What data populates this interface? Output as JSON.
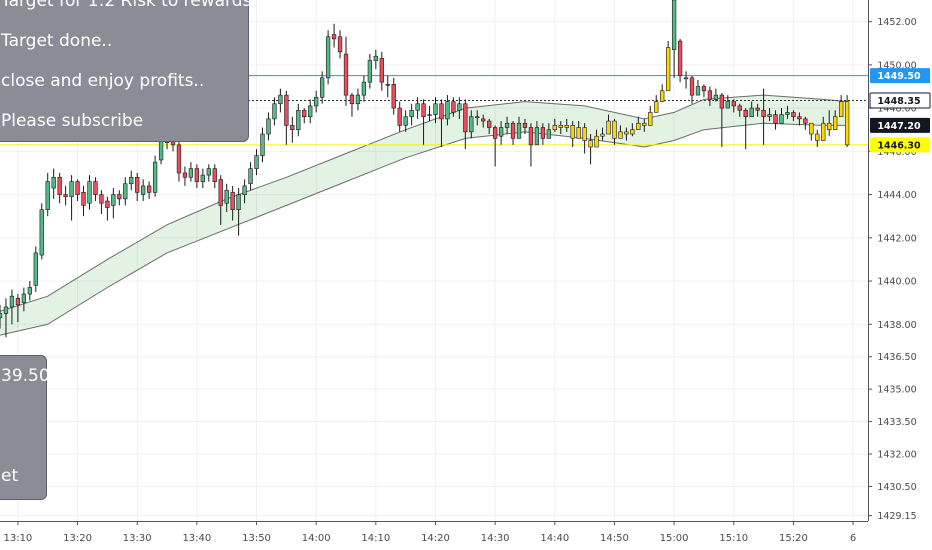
{
  "annotations": {
    "top_note": [
      "Target for 1:2 Risk to rewards",
      "Target done..",
      "close and enjoy profits..",
      "Please subscribe"
    ],
    "left_note": [
      "39.50",
      "et"
    ]
  },
  "chart_data": {
    "type": "candlestick",
    "title": "",
    "xlabel": "",
    "ylabel": "",
    "ylim": [
      1428.9,
      1453.0
    ],
    "y_ticks": [
      "1452.00",
      "1450.00",
      "1448.00",
      "1446.00",
      "1444.00",
      "1442.00",
      "1440.00",
      "1438.00",
      "1436.50",
      "1435.00",
      "1433.50",
      "1432.00",
      "1430.50",
      "1429.15"
    ],
    "y_tick_values": [
      1452.0,
      1450.0,
      1448.0,
      1446.0,
      1444.0,
      1442.0,
      1440.0,
      1438.0,
      1436.5,
      1435.0,
      1433.5,
      1432.0,
      1430.5,
      1429.15
    ],
    "x_ticks": [
      "13:10",
      "13:20",
      "13:30",
      "13:40",
      "13:50",
      "14:00",
      "14:10",
      "14:20",
      "14:30",
      "14:40",
      "14:50",
      "15:00",
      "15:10",
      "15:20",
      "6"
    ],
    "x_tick_minutes": [
      10,
      20,
      30,
      40,
      50,
      60,
      70,
      80,
      90,
      100,
      110,
      120,
      130,
      140,
      150
    ],
    "x_range_minutes": [
      7,
      152.5
    ],
    "price_lines": [
      {
        "label": "1449.50",
        "value": 1449.5,
        "color": "#2196f3",
        "style": "solid"
      },
      {
        "label": "1448.35",
        "value": 1448.35,
        "color": "#333333",
        "style": "dotted"
      },
      {
        "label": "1447.20",
        "value": 1447.2,
        "color": "#222222",
        "style": "none"
      },
      {
        "label": "1446.30",
        "value": 1446.3,
        "color": "#f5f500",
        "style": "solid"
      }
    ],
    "band": {
      "minutes": [
        7,
        15,
        25,
        35,
        45,
        55,
        65,
        75,
        85,
        95,
        105,
        115,
        120,
        125,
        135,
        145,
        149
      ],
      "upper": [
        1438.6,
        1439.3,
        1441.0,
        1442.6,
        1443.8,
        1444.8,
        1445.9,
        1447.0,
        1448.0,
        1448.3,
        1448.1,
        1447.5,
        1447.8,
        1448.4,
        1448.6,
        1448.4,
        1448.3
      ],
      "lower": [
        1437.5,
        1438.0,
        1439.7,
        1441.3,
        1442.4,
        1443.5,
        1444.6,
        1445.7,
        1446.6,
        1446.9,
        1446.6,
        1446.2,
        1446.5,
        1447.0,
        1447.3,
        1447.2,
        1447.2
      ]
    },
    "candles": {
      "colors": {
        "up": "#53b987",
        "down": "#eb4d5c",
        "wick": "#1a1a1a",
        "highlight": "#ffd600"
      },
      "minute": [
        7,
        8,
        9,
        10,
        11,
        12,
        13,
        14,
        15,
        16,
        17,
        18,
        19,
        20,
        21,
        22,
        23,
        24,
        25,
        26,
        27,
        28,
        29,
        30,
        31,
        32,
        33,
        34,
        35,
        36,
        37,
        38,
        39,
        40,
        41,
        42,
        43,
        44,
        45,
        46,
        47,
        48,
        49,
        50,
        51,
        52,
        53,
        54,
        55,
        56,
        57,
        58,
        59,
        60,
        61,
        62,
        63,
        64,
        65,
        66,
        67,
        68,
        69,
        70,
        71,
        72,
        73,
        74,
        75,
        76,
        77,
        78,
        79,
        80,
        81,
        82,
        83,
        84,
        85,
        86,
        87,
        88,
        89,
        90,
        91,
        92,
        93,
        94,
        95,
        96,
        97,
        98,
        99,
        100,
        101,
        102,
        103,
        104,
        105,
        106,
        107,
        108,
        109,
        110,
        111,
        112,
        113,
        114,
        115,
        116,
        117,
        118,
        119,
        120,
        121,
        122,
        123,
        124,
        125,
        126,
        127,
        128,
        129,
        130,
        131,
        132,
        133,
        134,
        135,
        136,
        137,
        138,
        139,
        140,
        141,
        142,
        143,
        144,
        145,
        146,
        147,
        148,
        149
      ],
      "open": [
        1438.3,
        1438.5,
        1438.8,
        1439.2,
        1439.0,
        1439.4,
        1439.8,
        1441.2,
        1443.3,
        1444.3,
        1444.8,
        1444.0,
        1443.9,
        1444.6,
        1444.1,
        1443.6,
        1444.6,
        1444.0,
        1443.7,
        1443.5,
        1444.0,
        1443.8,
        1444.5,
        1444.8,
        1444.0,
        1444.4,
        1444.1,
        1445.6,
        1446.4,
        1446.6,
        1446.3,
        1445.0,
        1444.8,
        1445.2,
        1444.6,
        1444.9,
        1445.2,
        1444.7,
        1443.6,
        1444.1,
        1443.3,
        1444.0,
        1444.5,
        1445.2,
        1445.8,
        1446.8,
        1447.5,
        1448.2,
        1448.6,
        1447.2,
        1447.0,
        1447.9,
        1447.6,
        1448.1,
        1448.5,
        1449.4,
        1451.4,
        1451.3,
        1450.5,
        1448.6,
        1448.2,
        1448.6,
        1449.2,
        1450.2,
        1450.3,
        1449.1,
        1449.1,
        1448.0,
        1447.2,
        1447.6,
        1447.9,
        1448.2,
        1447.7,
        1447.7,
        1448.2,
        1447.5,
        1448.3,
        1447.9,
        1448.2,
        1446.9,
        1447.6,
        1447.5,
        1447.4,
        1447.1,
        1446.7,
        1447.1,
        1447.3,
        1446.6,
        1447.3,
        1447.1,
        1446.3,
        1447.1,
        1446.6,
        1447.0,
        1447.2,
        1447.1,
        1447.2,
        1446.6,
        1447.1,
        1446.5,
        1446.2,
        1446.7,
        1446.8,
        1447.4,
        1446.6,
        1446.9,
        1446.8,
        1447.0,
        1447.3,
        1447.2,
        1447.8,
        1448.3,
        1448.8,
        1450.7,
        1451.1,
        1449.4,
        1449.4,
        1448.6,
        1449.0,
        1448.8,
        1448.4,
        1448.6,
        1448.0,
        1448.3,
        1448.1,
        1447.9,
        1447.6,
        1448.0,
        1447.9,
        1447.6,
        1447.7,
        1447.3,
        1447.7,
        1447.8,
        1447.6,
        1447.5,
        1447.3,
        1446.8,
        1446.5,
        1447.3,
        1447.0,
        1447.6,
        1448.3
      ],
      "close": [
        1438.5,
        1438.8,
        1439.3,
        1438.9,
        1439.4,
        1439.7,
        1441.3,
        1443.3,
        1444.6,
        1444.8,
        1444.0,
        1443.9,
        1444.6,
        1444.0,
        1443.5,
        1444.6,
        1444.0,
        1443.6,
        1443.4,
        1444.0,
        1443.8,
        1444.5,
        1444.8,
        1444.1,
        1444.4,
        1444.1,
        1445.5,
        1446.5,
        1446.7,
        1446.3,
        1445.0,
        1444.8,
        1445.2,
        1444.6,
        1444.9,
        1445.2,
        1444.6,
        1443.5,
        1444.2,
        1443.3,
        1444.0,
        1444.4,
        1445.2,
        1445.8,
        1446.8,
        1447.5,
        1448.2,
        1448.6,
        1447.2,
        1447.0,
        1447.9,
        1447.6,
        1448.1,
        1448.5,
        1449.4,
        1451.3,
        1451.2,
        1450.6,
        1448.6,
        1448.2,
        1448.6,
        1449.2,
        1450.2,
        1450.4,
        1449.2,
        1449.1,
        1448.0,
        1447.2,
        1447.6,
        1447.9,
        1448.2,
        1447.6,
        1447.7,
        1448.2,
        1447.5,
        1448.3,
        1447.8,
        1448.2,
        1446.9,
        1447.6,
        1447.6,
        1447.4,
        1447.1,
        1446.6,
        1447.1,
        1447.3,
        1446.6,
        1447.3,
        1447.1,
        1446.3,
        1447.1,
        1446.6,
        1447.0,
        1447.2,
        1447.1,
        1447.2,
        1446.6,
        1447.1,
        1446.5,
        1446.2,
        1446.7,
        1446.8,
        1447.4,
        1446.6,
        1446.9,
        1446.8,
        1447.0,
        1447.3,
        1447.2,
        1447.8,
        1448.3,
        1448.8,
        1450.8,
        1453.0,
        1449.5,
        1449.4,
        1448.6,
        1449.0,
        1448.8,
        1448.4,
        1448.6,
        1448.0,
        1448.3,
        1448.1,
        1447.9,
        1447.6,
        1448.0,
        1447.9,
        1447.6,
        1447.7,
        1447.3,
        1447.7,
        1447.8,
        1447.6,
        1447.5,
        1447.3,
        1446.8,
        1446.5,
        1447.3,
        1447.0,
        1447.6,
        1448.3,
        1446.3
      ],
      "high": [
        1438.9,
        1439.2,
        1439.6,
        1439.4,
        1439.7,
        1440.0,
        1441.6,
        1443.6,
        1445.0,
        1445.2,
        1445.0,
        1444.4,
        1444.9,
        1444.7,
        1444.4,
        1444.9,
        1444.8,
        1444.2,
        1443.9,
        1444.3,
        1444.2,
        1444.8,
        1445.1,
        1445.0,
        1444.7,
        1444.6,
        1445.8,
        1446.8,
        1447.0,
        1446.8,
        1446.5,
        1445.3,
        1445.5,
        1445.4,
        1445.2,
        1445.4,
        1445.4,
        1444.9,
        1444.5,
        1444.4,
        1444.3,
        1444.7,
        1445.5,
        1446.1,
        1447.1,
        1447.8,
        1448.5,
        1448.9,
        1448.8,
        1447.6,
        1448.2,
        1448.0,
        1448.4,
        1448.8,
        1449.7,
        1451.6,
        1451.9,
        1451.6,
        1451.3,
        1448.7,
        1448.9,
        1449.5,
        1450.5,
        1450.7,
        1450.6,
        1449.5,
        1449.4,
        1448.3,
        1447.9,
        1448.2,
        1448.5,
        1448.4,
        1448.1,
        1448.5,
        1448.4,
        1448.6,
        1448.5,
        1448.5,
        1448.4,
        1447.9,
        1447.9,
        1447.7,
        1447.5,
        1447.2,
        1447.4,
        1447.6,
        1447.4,
        1447.6,
        1447.5,
        1447.3,
        1447.4,
        1447.3,
        1447.3,
        1447.5,
        1447.4,
        1447.5,
        1447.4,
        1447.4,
        1447.3,
        1446.8,
        1447.0,
        1447.1,
        1447.7,
        1447.5,
        1447.2,
        1447.1,
        1447.3,
        1447.6,
        1447.5,
        1448.1,
        1448.6,
        1449.1,
        1451.1,
        1453.0,
        1451.2,
        1449.7,
        1449.5,
        1449.3,
        1449.1,
        1449.0,
        1448.9,
        1448.7,
        1448.6,
        1448.4,
        1448.2,
        1448.0,
        1448.3,
        1448.2,
        1448.9,
        1448.0,
        1447.9,
        1448.0,
        1448.1,
        1447.9,
        1447.8,
        1447.6,
        1447.2,
        1447.0,
        1447.6,
        1447.9,
        1447.9,
        1448.6,
        1448.6
      ],
      "low": [
        1437.8,
        1437.4,
        1438.0,
        1438.1,
        1438.6,
        1439.1,
        1439.5,
        1441.0,
        1443.0,
        1443.8,
        1443.6,
        1443.5,
        1442.8,
        1443.7,
        1443.0,
        1443.3,
        1443.7,
        1443.1,
        1442.8,
        1442.9,
        1443.5,
        1443.5,
        1444.2,
        1443.7,
        1443.7,
        1443.8,
        1443.9,
        1445.4,
        1446.1,
        1446.0,
        1444.6,
        1444.4,
        1444.6,
        1444.3,
        1444.3,
        1444.6,
        1444.3,
        1442.6,
        1443.2,
        1442.8,
        1442.1,
        1443.6,
        1444.2,
        1444.9,
        1445.5,
        1446.5,
        1447.2,
        1447.8,
        1446.3,
        1446.4,
        1446.7,
        1447.3,
        1447.3,
        1447.8,
        1448.2,
        1449.1,
        1450.8,
        1450.3,
        1448.1,
        1447.6,
        1447.9,
        1448.3,
        1448.9,
        1449.8,
        1448.8,
        1448.5,
        1447.7,
        1446.9,
        1446.9,
        1447.2,
        1447.5,
        1446.3,
        1447.4,
        1447.3,
        1446.2,
        1447.2,
        1447.6,
        1447.5,
        1446.1,
        1446.6,
        1447.2,
        1447.1,
        1446.8,
        1445.3,
        1446.3,
        1446.8,
        1446.3,
        1446.9,
        1446.8,
        1445.3,
        1446.8,
        1446.3,
        1446.6,
        1446.9,
        1446.8,
        1446.9,
        1446.2,
        1446.8,
        1445.9,
        1445.4,
        1446.3,
        1446.5,
        1447.0,
        1446.3,
        1446.6,
        1446.5,
        1446.7,
        1447.0,
        1446.9,
        1447.4,
        1447.9,
        1448.3,
        1450.2,
        1449.4,
        1449.2,
        1448.9,
        1448.2,
        1448.7,
        1448.5,
        1448.1,
        1448.3,
        1446.2,
        1448.0,
        1447.8,
        1447.6,
        1446.1,
        1447.7,
        1447.6,
        1446.3,
        1447.4,
        1447.0,
        1447.4,
        1447.5,
        1447.4,
        1447.2,
        1447.0,
        1446.5,
        1446.2,
        1446.7,
        1446.7,
        1447.3,
        1448.0,
        1446.2
      ],
      "highlight": [
        100,
        101,
        102,
        103,
        104,
        105,
        106,
        107,
        108,
        109,
        110,
        111,
        112,
        113,
        114,
        115,
        116,
        117,
        118,
        119,
        143,
        144,
        145,
        146,
        147,
        148,
        149
      ]
    }
  }
}
